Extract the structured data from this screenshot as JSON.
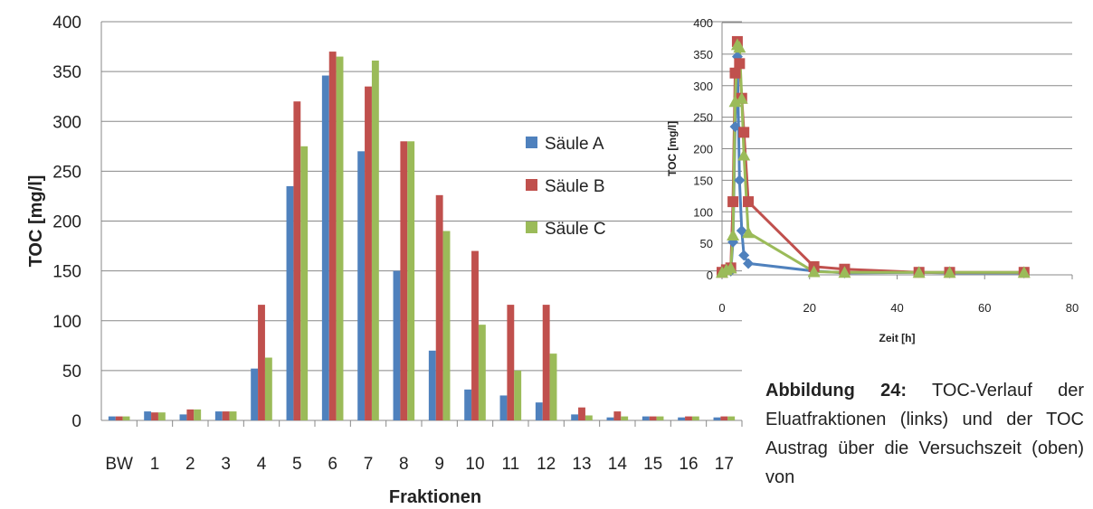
{
  "chart_data": [
    {
      "type": "bar",
      "title": "",
      "xlabel": "Fraktionen",
      "ylabel": "TOC [mg/l]",
      "ylim": [
        0,
        400
      ],
      "yticks": [
        0,
        50,
        100,
        150,
        200,
        250,
        300,
        350,
        400
      ],
      "grid": true,
      "legend": "right",
      "categories": [
        "BW",
        "1",
        "2",
        "3",
        "4",
        "5",
        "6",
        "7",
        "8",
        "9",
        "10",
        "11",
        "12",
        "13",
        "14",
        "15",
        "16",
        "17"
      ],
      "series": [
        {
          "name": "Säule A",
          "color": "#4f81bd",
          "values": [
            4,
            9,
            6,
            9,
            52,
            235,
            346,
            270,
            150,
            70,
            31,
            25,
            18,
            6,
            3,
            4,
            3,
            3
          ]
        },
        {
          "name": "Säule B",
          "color": "#c0504d",
          "values": [
            4,
            8,
            11,
            9,
            116,
            320,
            370,
            335,
            280,
            226,
            170,
            116,
            116,
            13,
            9,
            4,
            4,
            4
          ]
        },
        {
          "name": "Säule C",
          "color": "#9bbb59",
          "values": [
            4,
            8,
            11,
            9,
            63,
            275,
            365,
            361,
            280,
            190,
            96,
            50,
            67,
            5,
            4,
            4,
            4,
            4
          ]
        }
      ]
    },
    {
      "type": "line",
      "title": "",
      "xlabel": "Zeit [h]",
      "ylabel": "TOC [mg/l]",
      "xlim": [
        0,
        80
      ],
      "ylim": [
        0,
        400
      ],
      "xticks": [
        0,
        20,
        40,
        60,
        80
      ],
      "yticks": [
        0,
        50,
        100,
        150,
        200,
        250,
        300,
        350,
        400
      ],
      "grid": true,
      "series": [
        {
          "name": "Säule A",
          "color": "#4f81bd",
          "marker": "diamond",
          "x": [
            0,
            1,
            2,
            2.5,
            3,
            3.5,
            4,
            4.5,
            5,
            6,
            21,
            28,
            45,
            52,
            69
          ],
          "y": [
            4,
            9,
            6,
            52,
            235,
            346,
            150,
            70,
            31,
            18,
            6,
            3,
            4,
            3,
            3
          ]
        },
        {
          "name": "Säule B",
          "color": "#c0504d",
          "marker": "square",
          "x": [
            0,
            1,
            2,
            2.5,
            3,
            3.5,
            4,
            4.5,
            5,
            6,
            21,
            28,
            45,
            52,
            69
          ],
          "y": [
            4,
            8,
            11,
            116,
            320,
            370,
            335,
            280,
            226,
            116,
            13,
            9,
            4,
            4,
            4
          ]
        },
        {
          "name": "Säule C",
          "color": "#9bbb59",
          "marker": "triangle",
          "x": [
            0,
            1,
            2,
            2.5,
            3,
            3.5,
            4,
            4.5,
            5,
            6,
            21,
            28,
            45,
            52,
            69
          ],
          "y": [
            4,
            8,
            11,
            63,
            275,
            365,
            361,
            280,
            190,
            67,
            5,
            4,
            4,
            4,
            4
          ]
        }
      ]
    }
  ],
  "caption": {
    "label": "Abbildung 24:",
    "text": "TOC-Verlauf der Eluatfraktionen (links) und der TOC Austrag über die Versuchszeit (oben) von"
  }
}
